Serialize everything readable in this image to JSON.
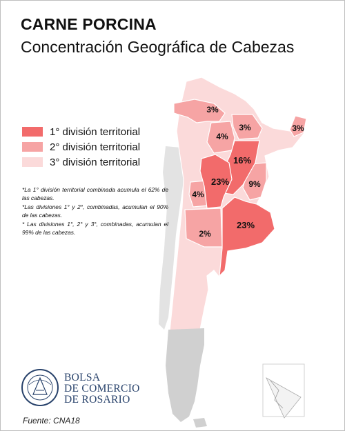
{
  "title": "CARNE PORCINA",
  "subtitle": "Concentración Geográfica de Cabezas",
  "legend": [
    {
      "label": "1° división territorial",
      "color": "#f26b6b"
    },
    {
      "label": "2° división territorial",
      "color": "#f6a4a4"
    },
    {
      "label": "3° división territorial",
      "color": "#fbdada"
    }
  ],
  "notes": [
    "*La 1° división territorial combinada acumula el 62% de las cabezas.",
    "*Las divisiones 1° y 2°, combinadas, acumulan el 90% de las cabezas.",
    "* Las divisiones 1°, 2° y 3°, combinadas, acumulan el 99% de las cabezas."
  ],
  "regions": [
    {
      "label": "3%",
      "tier": 2
    },
    {
      "label": "4%",
      "tier": 2
    },
    {
      "label": "3%",
      "tier": 2
    },
    {
      "label": "3%",
      "tier": 2
    },
    {
      "label": "16%",
      "tier": 1
    },
    {
      "label": "23%",
      "tier": 1
    },
    {
      "label": "9%",
      "tier": 2
    },
    {
      "label": "4%",
      "tier": 2
    },
    {
      "label": "23%",
      "tier": 1
    },
    {
      "label": "2%",
      "tier": 2
    }
  ],
  "colors": {
    "tier1": "#f26b6b",
    "tier2": "#f6a4a4",
    "tier3": "#fbdada",
    "no_data": "#d0d0d0",
    "chile": "#e3e3e3",
    "border": "#ffffff"
  },
  "logo": {
    "line1": "BOLSA",
    "line2": "DE COMERCIO",
    "line3": "DE ROSARIO",
    "seal_text": "BOLSA DE COMERCIO DE ROSARIO"
  },
  "source": "Fuente: CNA18"
}
